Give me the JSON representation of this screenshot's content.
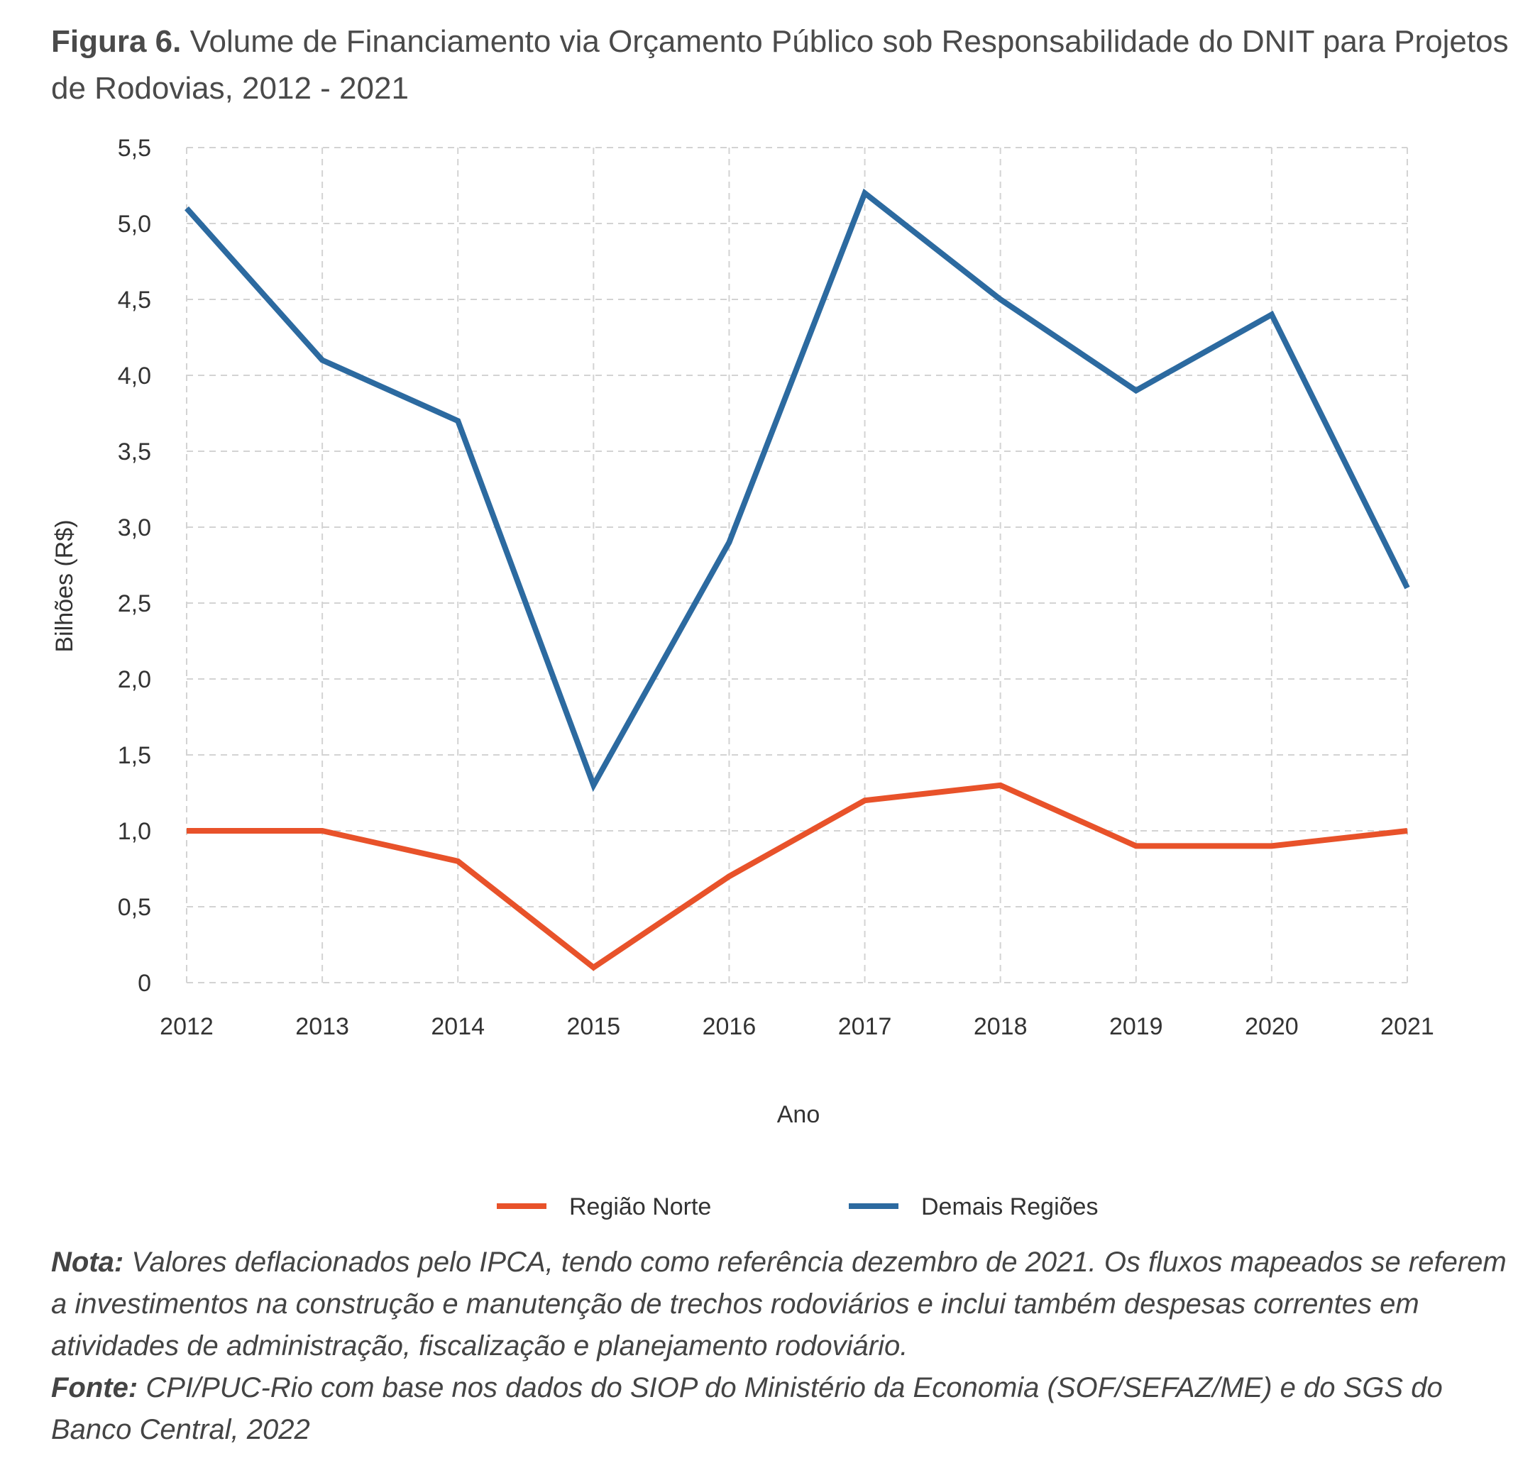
{
  "title": {
    "label": "Figura 6.",
    "text": "Volume de Financiamento via Orçamento Público sob Responsabilidade do DNIT para Projetos de Rodovias, 2012 - 2021"
  },
  "notes": {
    "nota_label": "Nota:",
    "nota_text": "Valores deflacionados pelo IPCA, tendo como referência dezembro de 2021. Os fluxos mapeados se referem a investimentos na construção e manutenção de trechos rodoviários e inclui também despesas correntes em atividades de administração, fiscalização e planejamento rodoviário.",
    "fonte_label": "Fonte:",
    "fonte_text": "CPI/PUC-Rio com base nos dados do SIOP do Ministério da Economia (SOF/SEFAZ/ME) e do SGS do Banco Central, 2022"
  },
  "colors": {
    "norte": "#e8522a",
    "demais": "#2c6aa0",
    "grid": "#d3d3d3"
  },
  "chart_data": {
    "type": "line",
    "title": "",
    "xlabel": "Ano",
    "ylabel": "Bilhões (R$)",
    "x": [
      "2012",
      "2013",
      "2014",
      "2015",
      "2016",
      "2017",
      "2018",
      "2019",
      "2020",
      "2021"
    ],
    "ylim": [
      0,
      5.5
    ],
    "yticks": [
      0,
      0.5,
      1.0,
      1.5,
      2.0,
      2.5,
      3.0,
      3.5,
      4.0,
      4.5,
      5.0,
      5.5
    ],
    "ytick_labels": [
      "0",
      "0,5",
      "1,0",
      "1,5",
      "2,0",
      "2,5",
      "3,0",
      "3,5",
      "4,0",
      "4,5",
      "5,0",
      "5,5"
    ],
    "grid": true,
    "legend_position": "bottom",
    "series": [
      {
        "name": "Região Norte",
        "values": [
          1.0,
          1.0,
          0.8,
          0.1,
          0.7,
          1.2,
          1.3,
          0.9,
          0.9,
          1.0
        ]
      },
      {
        "name": "Demais Regiões",
        "values": [
          5.1,
          4.1,
          3.7,
          1.3,
          2.9,
          5.2,
          4.5,
          3.9,
          4.4,
          2.6
        ]
      }
    ]
  }
}
